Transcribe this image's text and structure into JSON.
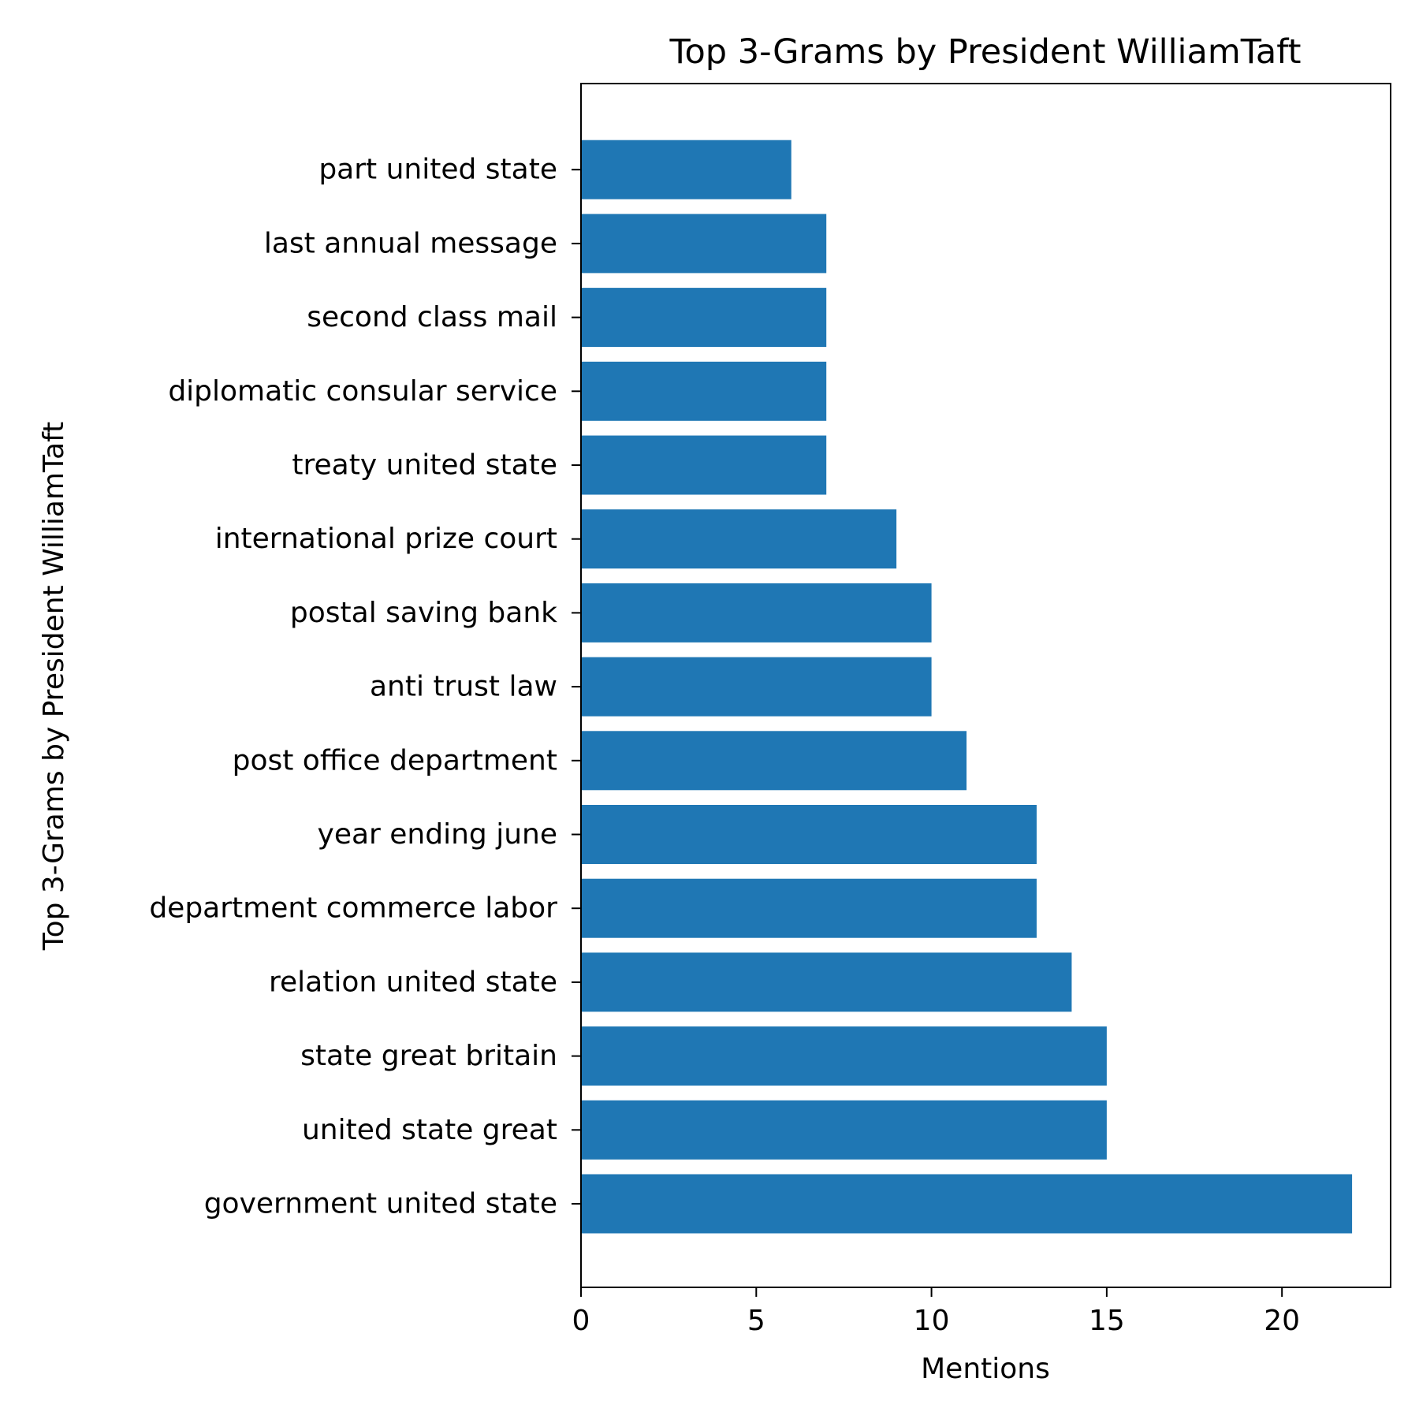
{
  "chart_data": {
    "type": "bar",
    "orientation": "horizontal",
    "title": "Top 3-Grams by President WilliamTaft",
    "xlabel": "Mentions",
    "ylabel": "Top 3-Grams by President WilliamTaft",
    "categories": [
      "government united state",
      "united state great",
      "state great britain",
      "relation united state",
      "department commerce labor",
      "year ending june",
      "post office department",
      "anti trust law",
      "postal saving bank",
      "international prize court",
      "treaty united state",
      "diplomatic consular service",
      "second class mail",
      "last annual message",
      "part united state"
    ],
    "values": [
      22,
      15,
      15,
      14,
      13,
      13,
      11,
      10,
      10,
      9,
      7,
      7,
      7,
      7,
      6
    ],
    "xlim": [
      0,
      23.1
    ],
    "xticks": [
      0,
      5,
      10,
      15,
      20
    ],
    "grid": false,
    "legend": "none",
    "bar_color": "#1f77b4"
  }
}
